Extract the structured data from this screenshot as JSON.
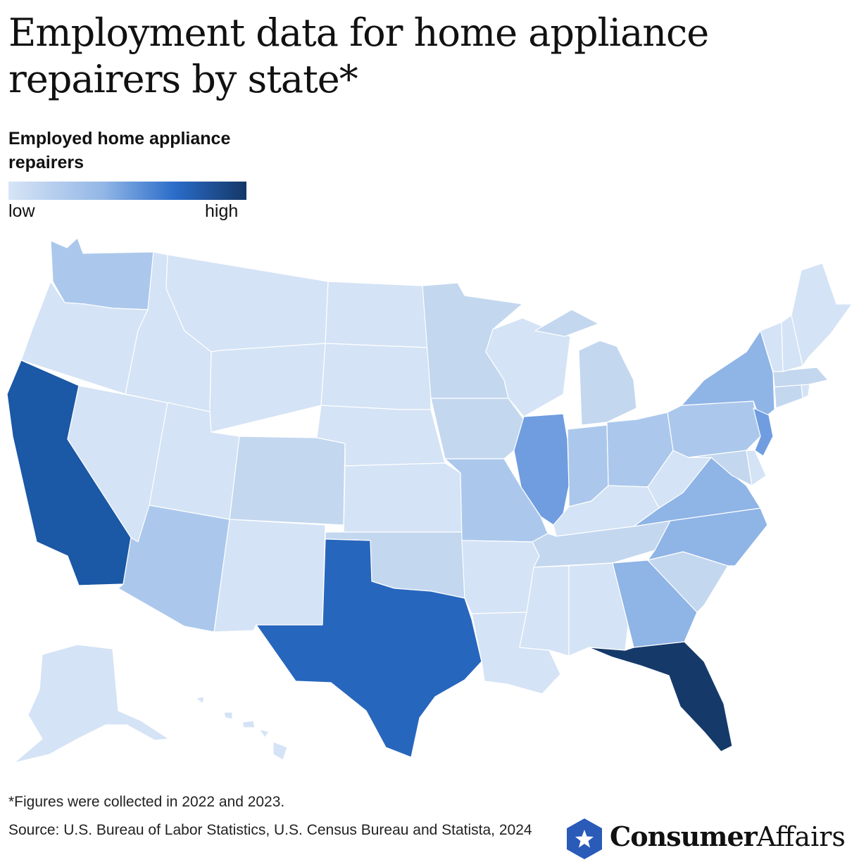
{
  "title": "Employment data for home appliance repairers by state*",
  "legend": {
    "title": "Employed home appliance repairers",
    "low": "low",
    "high": "high"
  },
  "colors": {
    "lightest": "#d4e3f5",
    "light": "#c3d7ef",
    "mid_light": "#abc8ec",
    "mid": "#8fb4e6",
    "mid_strong": "#6f9de0",
    "strong": "#2766bd",
    "stronger": "#1b58a5",
    "darkest": "#153a6a"
  },
  "chart_data": {
    "type": "choropleth",
    "scale": "sequential blue (low to high)",
    "states": [
      {
        "state": "Washington",
        "level": "mid_light"
      },
      {
        "state": "Oregon",
        "level": "lightest"
      },
      {
        "state": "California",
        "level": "stronger"
      },
      {
        "state": "Nevada",
        "level": "lightest"
      },
      {
        "state": "Idaho",
        "level": "lightest"
      },
      {
        "state": "Montana",
        "level": "lightest"
      },
      {
        "state": "Wyoming",
        "level": "lightest"
      },
      {
        "state": "Utah",
        "level": "lightest"
      },
      {
        "state": "Arizona",
        "level": "mid_light"
      },
      {
        "state": "Colorado",
        "level": "light"
      },
      {
        "state": "New Mexico",
        "level": "lightest"
      },
      {
        "state": "North Dakota",
        "level": "lightest"
      },
      {
        "state": "South Dakota",
        "level": "lightest"
      },
      {
        "state": "Nebraska",
        "level": "lightest"
      },
      {
        "state": "Kansas",
        "level": "lightest"
      },
      {
        "state": "Oklahoma",
        "level": "light"
      },
      {
        "state": "Texas",
        "level": "strong"
      },
      {
        "state": "Minnesota",
        "level": "light"
      },
      {
        "state": "Iowa",
        "level": "light"
      },
      {
        "state": "Missouri",
        "level": "mid_light"
      },
      {
        "state": "Arkansas",
        "level": "lightest"
      },
      {
        "state": "Louisiana",
        "level": "lightest"
      },
      {
        "state": "Wisconsin",
        "level": "lightest"
      },
      {
        "state": "Illinois",
        "level": "mid_strong"
      },
      {
        "state": "Michigan",
        "level": "light"
      },
      {
        "state": "Indiana",
        "level": "mid_light"
      },
      {
        "state": "Ohio",
        "level": "mid_light"
      },
      {
        "state": "Kentucky",
        "level": "lightest"
      },
      {
        "state": "Tennessee",
        "level": "light"
      },
      {
        "state": "Mississippi",
        "level": "lightest"
      },
      {
        "state": "Alabama",
        "level": "lightest"
      },
      {
        "state": "Georgia",
        "level": "mid"
      },
      {
        "state": "Florida",
        "level": "darkest"
      },
      {
        "state": "South Carolina",
        "level": "light"
      },
      {
        "state": "North Carolina",
        "level": "mid"
      },
      {
        "state": "Virginia",
        "level": "mid"
      },
      {
        "state": "West Virginia",
        "level": "lightest"
      },
      {
        "state": "Pennsylvania",
        "level": "mid_light"
      },
      {
        "state": "New York",
        "level": "mid"
      },
      {
        "state": "New Jersey",
        "level": "mid_strong"
      },
      {
        "state": "Maryland",
        "level": "light"
      },
      {
        "state": "Delaware",
        "level": "lightest"
      },
      {
        "state": "Connecticut",
        "level": "light"
      },
      {
        "state": "Rhode Island",
        "level": "lightest"
      },
      {
        "state": "Massachusetts",
        "level": "light"
      },
      {
        "state": "Vermont",
        "level": "lightest"
      },
      {
        "state": "New Hampshire",
        "level": "lightest"
      },
      {
        "state": "Maine",
        "level": "lightest"
      },
      {
        "state": "Alaska",
        "level": "lightest"
      },
      {
        "state": "Hawaii",
        "level": "lightest"
      }
    ]
  },
  "footnote": "*Figures were collected in 2022 and 2023.",
  "source": "Source: U.S. Bureau of Labor Statistics, U.S. Census Bureau and Statista, 2024",
  "logo": {
    "part1": "Consumer",
    "part2": "Affairs"
  }
}
